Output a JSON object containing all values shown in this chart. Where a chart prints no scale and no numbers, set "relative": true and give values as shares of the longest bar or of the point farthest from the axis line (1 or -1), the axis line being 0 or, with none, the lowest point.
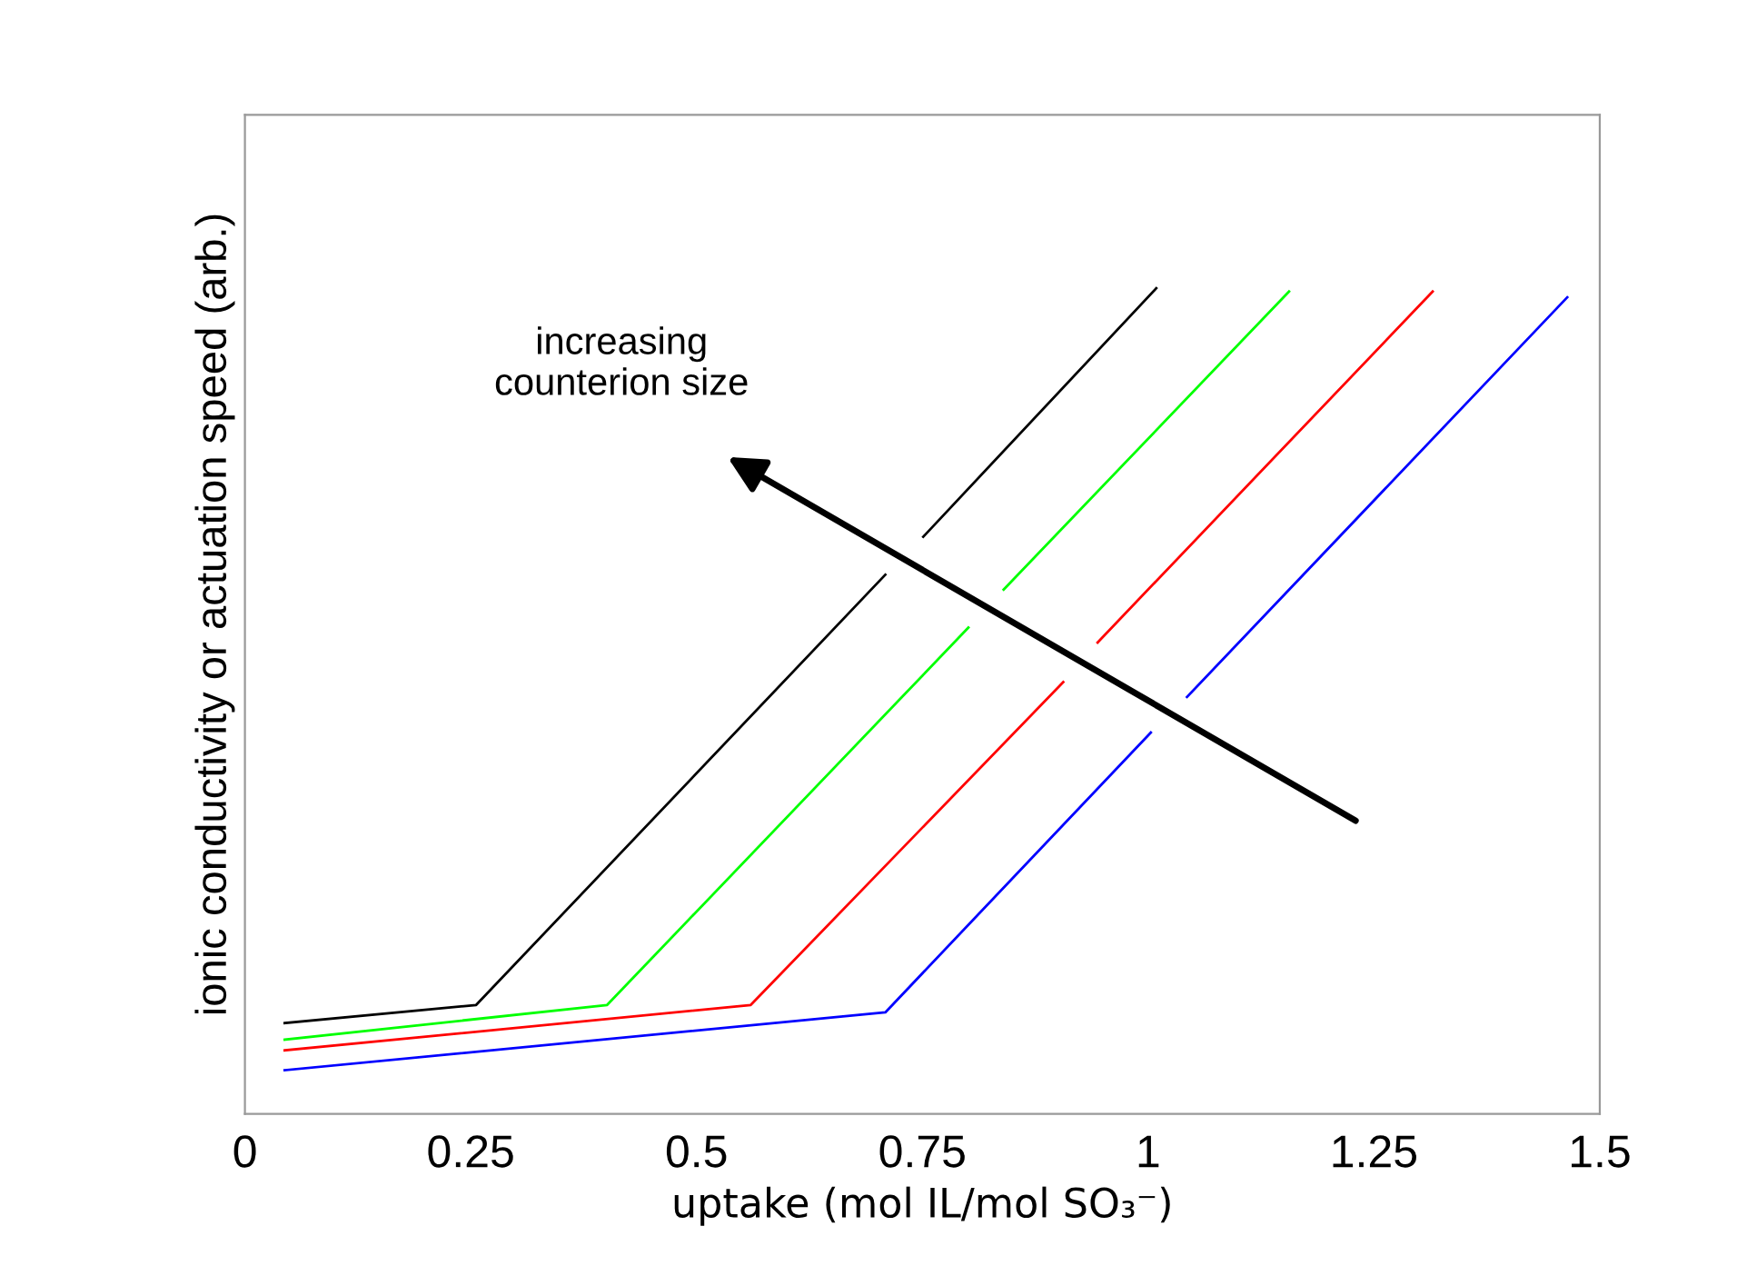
{
  "chart_data": {
    "type": "line",
    "relative": true,
    "xlabel": "uptake (mol IL/mol SO₃⁻)",
    "ylabel": "ionic conductivity or actuation speed (arb.)",
    "xlim": [
      0,
      1.5
    ],
    "xticks": [
      0,
      0.25,
      0.5,
      0.75,
      1,
      1.25,
      1.5
    ],
    "grid": false,
    "legend": false,
    "line_style": "solid",
    "marker": "none",
    "annotations": [
      "increasing\ncounterion size"
    ],
    "series": [
      {
        "color": "#000000",
        "x": [
          0.044,
          0.256,
          0.709,
          0.73,
          0.751,
          1.009
        ],
        "values": [
          0.11,
          0.132,
          0.653,
          null,
          0.699,
          1.0
        ]
      },
      {
        "color": "#00ff00",
        "x": [
          0.044,
          0.401,
          0.801,
          0.82,
          0.84,
          1.156
        ],
        "values": [
          0.09,
          0.132,
          0.589,
          null,
          0.635,
          0.996
        ]
      },
      {
        "color": "#ff0000",
        "x": [
          0.044,
          0.56,
          0.906,
          0.925,
          0.944,
          1.315
        ],
        "values": [
          0.077,
          0.132,
          0.523,
          null,
          0.571,
          0.996
        ]
      },
      {
        "color": "#0000ff",
        "x": [
          0.044,
          0.709,
          1.003,
          1.023,
          1.043,
          1.464
        ],
        "values": [
          0.053,
          0.123,
          0.462,
          null,
          0.505,
          0.989
        ]
      }
    ]
  }
}
